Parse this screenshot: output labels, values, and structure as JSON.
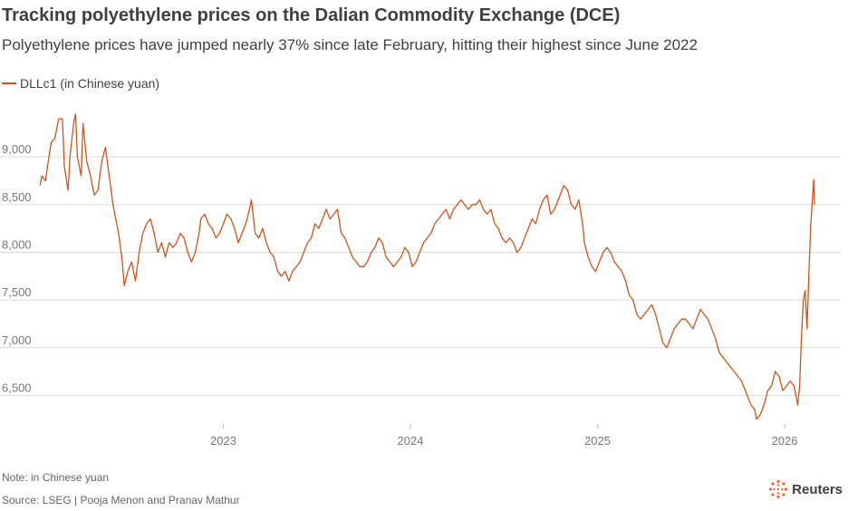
{
  "header": {
    "title": "Tracking polyethylene prices on the Dalian Commodity Exchange (DCE)",
    "subtitle": "Polyethylene prices have jumped nearly 37% since late February, hitting their highest since June 2022"
  },
  "footer": {
    "note": "Note: in Chinese yuan",
    "source": "Source: LSEG | Pooja Menon and Pranav Mathur",
    "brand": "Reuters"
  },
  "colors": {
    "line": "#d0541a",
    "grid": "#d9d9d9",
    "text": "#404040"
  },
  "chart_data": {
    "type": "line",
    "title": "Tracking polyethylene prices on the Dalian Commodity Exchange (DCE)",
    "xlabel": "",
    "ylabel": "",
    "legend": {
      "position": "top-left"
    },
    "grid": true,
    "xlim": [
      2022.0,
      2026.3
    ],
    "ylim": [
      6200,
      9600
    ],
    "yticks": [
      6500,
      7000,
      7500,
      8000,
      8500,
      9000
    ],
    "ytick_labels": [
      "6,500",
      "7,000",
      "7,500",
      "8,000",
      "8,500",
      "9,000"
    ],
    "xticks": [
      2023,
      2024,
      2025,
      2026
    ],
    "xtick_labels": [
      "2023",
      "2024",
      "2025",
      "2026"
    ],
    "series": [
      {
        "name": "DLLc1 (in Chinese yuan)",
        "points": [
          [
            2022.02,
            8700
          ],
          [
            2022.03,
            8800
          ],
          [
            2022.05,
            8750
          ],
          [
            2022.06,
            8900
          ],
          [
            2022.08,
            9150
          ],
          [
            2022.1,
            9200
          ],
          [
            2022.12,
            9400
          ],
          [
            2022.14,
            9400
          ],
          [
            2022.15,
            8900
          ],
          [
            2022.17,
            8650
          ],
          [
            2022.18,
            9000
          ],
          [
            2022.2,
            9350
          ],
          [
            2022.21,
            9450
          ],
          [
            2022.22,
            9000
          ],
          [
            2022.24,
            8800
          ],
          [
            2022.25,
            9350
          ],
          [
            2022.27,
            8950
          ],
          [
            2022.29,
            8800
          ],
          [
            2022.31,
            8600
          ],
          [
            2022.33,
            8650
          ],
          [
            2022.35,
            8950
          ],
          [
            2022.37,
            9100
          ],
          [
            2022.39,
            8800
          ],
          [
            2022.41,
            8500
          ],
          [
            2022.42,
            8400
          ],
          [
            2022.44,
            8200
          ],
          [
            2022.46,
            7900
          ],
          [
            2022.47,
            7650
          ],
          [
            2022.49,
            7800
          ],
          [
            2022.51,
            7900
          ],
          [
            2022.53,
            7700
          ],
          [
            2022.55,
            8000
          ],
          [
            2022.57,
            8200
          ],
          [
            2022.59,
            8300
          ],
          [
            2022.61,
            8350
          ],
          [
            2022.63,
            8200
          ],
          [
            2022.65,
            8000
          ],
          [
            2022.67,
            8100
          ],
          [
            2022.69,
            7950
          ],
          [
            2022.71,
            8100
          ],
          [
            2022.73,
            8050
          ],
          [
            2022.75,
            8100
          ],
          [
            2022.77,
            8200
          ],
          [
            2022.79,
            8150
          ],
          [
            2022.81,
            8000
          ],
          [
            2022.83,
            7900
          ],
          [
            2022.85,
            8000
          ],
          [
            2022.87,
            8200
          ],
          [
            2022.88,
            8350
          ],
          [
            2022.9,
            8400
          ],
          [
            2022.92,
            8300
          ],
          [
            2022.94,
            8250
          ],
          [
            2022.96,
            8150
          ],
          [
            2022.98,
            8200
          ],
          [
            2023.0,
            8300
          ],
          [
            2023.02,
            8400
          ],
          [
            2023.04,
            8350
          ],
          [
            2023.06,
            8250
          ],
          [
            2023.08,
            8100
          ],
          [
            2023.1,
            8200
          ],
          [
            2023.12,
            8300
          ],
          [
            2023.14,
            8450
          ],
          [
            2023.15,
            8550
          ],
          [
            2023.17,
            8200
          ],
          [
            2023.19,
            8150
          ],
          [
            2023.21,
            8250
          ],
          [
            2023.23,
            8100
          ],
          [
            2023.25,
            8000
          ],
          [
            2023.27,
            7950
          ],
          [
            2023.29,
            7800
          ],
          [
            2023.31,
            7750
          ],
          [
            2023.33,
            7800
          ],
          [
            2023.35,
            7700
          ],
          [
            2023.37,
            7800
          ],
          [
            2023.39,
            7850
          ],
          [
            2023.41,
            7900
          ],
          [
            2023.43,
            8000
          ],
          [
            2023.45,
            8100
          ],
          [
            2023.47,
            8150
          ],
          [
            2023.49,
            8300
          ],
          [
            2023.51,
            8250
          ],
          [
            2023.53,
            8350
          ],
          [
            2023.55,
            8450
          ],
          [
            2023.57,
            8350
          ],
          [
            2023.59,
            8400
          ],
          [
            2023.61,
            8450
          ],
          [
            2023.63,
            8200
          ],
          [
            2023.65,
            8150
          ],
          [
            2023.67,
            8050
          ],
          [
            2023.69,
            7950
          ],
          [
            2023.71,
            7900
          ],
          [
            2023.73,
            7850
          ],
          [
            2023.75,
            7850
          ],
          [
            2023.77,
            7900
          ],
          [
            2023.79,
            8000
          ],
          [
            2023.81,
            8050
          ],
          [
            2023.83,
            8150
          ],
          [
            2023.85,
            8100
          ],
          [
            2023.87,
            7950
          ],
          [
            2023.89,
            7900
          ],
          [
            2023.91,
            7850
          ],
          [
            2023.93,
            7900
          ],
          [
            2023.95,
            7950
          ],
          [
            2023.97,
            8050
          ],
          [
            2023.99,
            8000
          ],
          [
            2024.01,
            7850
          ],
          [
            2024.03,
            7900
          ],
          [
            2024.05,
            8000
          ],
          [
            2024.07,
            8100
          ],
          [
            2024.09,
            8150
          ],
          [
            2024.11,
            8200
          ],
          [
            2024.13,
            8300
          ],
          [
            2024.15,
            8350
          ],
          [
            2024.17,
            8400
          ],
          [
            2024.19,
            8450
          ],
          [
            2024.21,
            8350
          ],
          [
            2024.23,
            8450
          ],
          [
            2024.25,
            8500
          ],
          [
            2024.27,
            8550
          ],
          [
            2024.29,
            8500
          ],
          [
            2024.31,
            8450
          ],
          [
            2024.33,
            8500
          ],
          [
            2024.35,
            8500
          ],
          [
            2024.37,
            8550
          ],
          [
            2024.39,
            8450
          ],
          [
            2024.41,
            8400
          ],
          [
            2024.43,
            8450
          ],
          [
            2024.45,
            8300
          ],
          [
            2024.47,
            8250
          ],
          [
            2024.49,
            8150
          ],
          [
            2024.51,
            8100
          ],
          [
            2024.53,
            8150
          ],
          [
            2024.55,
            8100
          ],
          [
            2024.57,
            8000
          ],
          [
            2024.59,
            8050
          ],
          [
            2024.61,
            8150
          ],
          [
            2024.63,
            8250
          ],
          [
            2024.65,
            8350
          ],
          [
            2024.67,
            8300
          ],
          [
            2024.69,
            8450
          ],
          [
            2024.71,
            8550
          ],
          [
            2024.73,
            8600
          ],
          [
            2024.75,
            8400
          ],
          [
            2024.77,
            8450
          ],
          [
            2024.79,
            8550
          ],
          [
            2024.81,
            8650
          ],
          [
            2024.82,
            8700
          ],
          [
            2024.84,
            8650
          ],
          [
            2024.86,
            8500
          ],
          [
            2024.88,
            8450
          ],
          [
            2024.9,
            8550
          ],
          [
            2024.92,
            8300
          ],
          [
            2024.93,
            8100
          ],
          [
            2024.95,
            7950
          ],
          [
            2024.97,
            7850
          ],
          [
            2024.99,
            7800
          ],
          [
            2025.01,
            7900
          ],
          [
            2025.03,
            8000
          ],
          [
            2025.05,
            8050
          ],
          [
            2025.07,
            8000
          ],
          [
            2025.09,
            7900
          ],
          [
            2025.11,
            7850
          ],
          [
            2025.13,
            7800
          ],
          [
            2025.15,
            7700
          ],
          [
            2025.17,
            7550
          ],
          [
            2025.19,
            7500
          ],
          [
            2025.21,
            7350
          ],
          [
            2025.23,
            7300
          ],
          [
            2025.25,
            7350
          ],
          [
            2025.27,
            7400
          ],
          [
            2025.29,
            7450
          ],
          [
            2025.31,
            7350
          ],
          [
            2025.33,
            7200
          ],
          [
            2025.35,
            7050
          ],
          [
            2025.37,
            7000
          ],
          [
            2025.39,
            7100
          ],
          [
            2025.41,
            7200
          ],
          [
            2025.43,
            7250
          ],
          [
            2025.45,
            7300
          ],
          [
            2025.47,
            7300
          ],
          [
            2025.49,
            7250
          ],
          [
            2025.51,
            7200
          ],
          [
            2025.53,
            7300
          ],
          [
            2025.55,
            7400
          ],
          [
            2025.57,
            7350
          ],
          [
            2025.59,
            7300
          ],
          [
            2025.61,
            7200
          ],
          [
            2025.63,
            7100
          ],
          [
            2025.65,
            6950
          ],
          [
            2025.67,
            6900
          ],
          [
            2025.69,
            6850
          ],
          [
            2025.71,
            6800
          ],
          [
            2025.73,
            6750
          ],
          [
            2025.75,
            6700
          ],
          [
            2025.77,
            6650
          ],
          [
            2025.79,
            6550
          ],
          [
            2025.81,
            6450
          ],
          [
            2025.82,
            6400
          ],
          [
            2025.84,
            6350
          ],
          [
            2025.85,
            6250
          ],
          [
            2025.87,
            6300
          ],
          [
            2025.89,
            6400
          ],
          [
            2025.91,
            6550
          ],
          [
            2025.93,
            6600
          ],
          [
            2025.95,
            6750
          ],
          [
            2025.97,
            6700
          ],
          [
            2025.99,
            6550
          ],
          [
            2026.01,
            6600
          ],
          [
            2026.03,
            6650
          ],
          [
            2026.05,
            6600
          ],
          [
            2026.07,
            6400
          ],
          [
            2026.08,
            6600
          ],
          [
            2026.09,
            7100
          ],
          [
            2026.1,
            7500
          ],
          [
            2026.11,
            7600
          ],
          [
            2026.12,
            7200
          ],
          [
            2026.13,
            7800
          ],
          [
            2026.14,
            8300
          ],
          [
            2026.15,
            8600
          ],
          [
            2026.155,
            8760
          ],
          [
            2026.16,
            8500
          ]
        ]
      }
    ]
  }
}
